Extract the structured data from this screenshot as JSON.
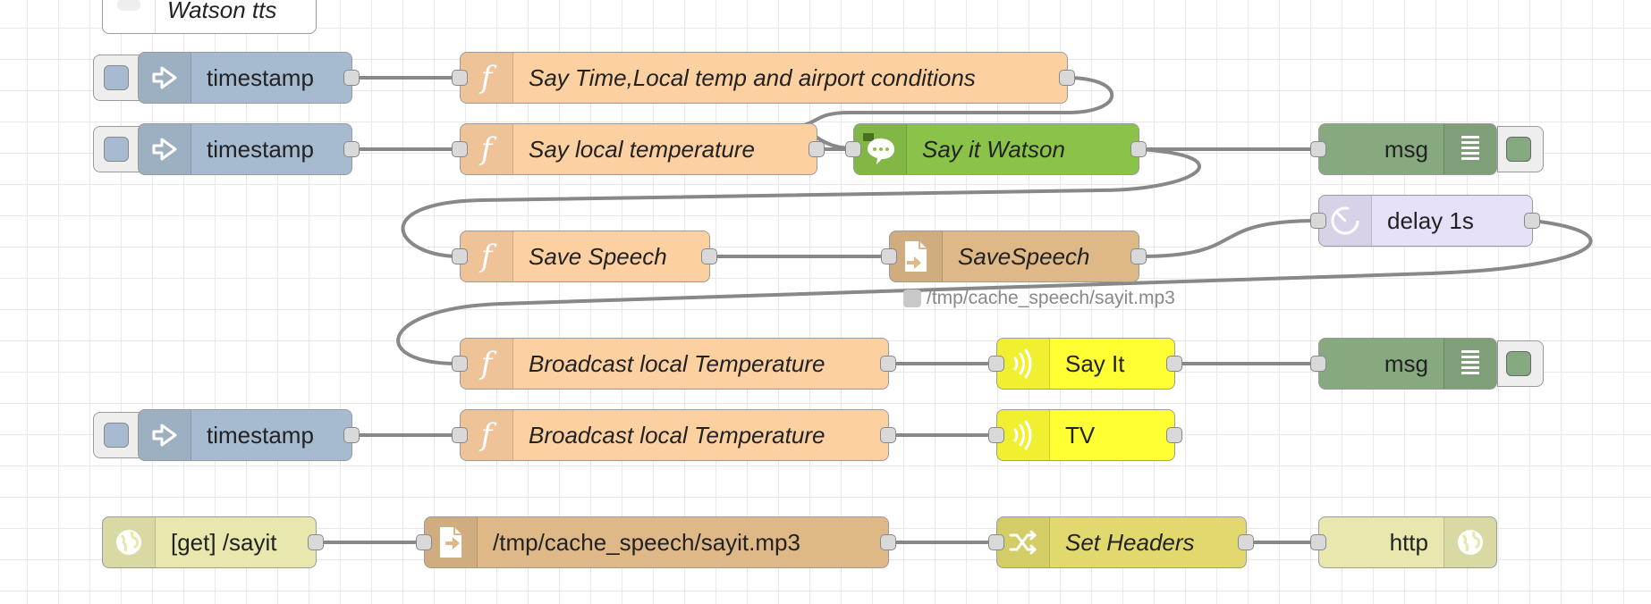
{
  "colors": {
    "inject": "#a6bbcf",
    "function": "#fdd0a2",
    "watson": "#8bc34a",
    "debug": "#87a980",
    "delay": "#e6e0f8",
    "file": "#deb887",
    "chromecast": "#ffff33",
    "http_in": "#e7e7ae",
    "change": "#e2d96e",
    "http_response": "#e7e7ae",
    "wire": "#888888"
  },
  "comment": {
    "label": "Watson tts"
  },
  "nodes": {
    "inject_1": {
      "label": "timestamp",
      "icon": "arrow-in-icon"
    },
    "inject_2": {
      "label": "timestamp",
      "icon": "arrow-in-icon"
    },
    "inject_3": {
      "label": "timestamp",
      "icon": "arrow-in-icon"
    },
    "func_airport": {
      "label": "Say Time,Local temp and airport conditions",
      "icon": "function-icon"
    },
    "func_local_temp": {
      "label": "Say local temperature",
      "icon": "function-icon"
    },
    "watson": {
      "label": "Say it Watson",
      "icon": "speech-bubble-icon"
    },
    "debug_1": {
      "label": "msg",
      "icon": "debug-list-icon"
    },
    "func_save": {
      "label": "Save Speech",
      "icon": "function-icon"
    },
    "file_save": {
      "label": "SaveSpeech",
      "icon": "file-icon",
      "status": "/tmp/cache_speech/sayit.mp3"
    },
    "delay": {
      "label": "delay 1s",
      "icon": "timer-icon"
    },
    "func_broadcast_1": {
      "label": "Broadcast local Temperature",
      "icon": "function-icon"
    },
    "say_it": {
      "label": "Say It",
      "icon": "cast-icon"
    },
    "debug_2": {
      "label": "msg",
      "icon": "debug-list-icon"
    },
    "func_broadcast_2": {
      "label": "Broadcast local Temperature",
      "icon": "function-icon"
    },
    "tv": {
      "label": "TV",
      "icon": "cast-icon"
    },
    "http_in": {
      "label": "[get] /sayit",
      "icon": "globe-icon"
    },
    "file_read": {
      "label": "/tmp/cache_speech/sayit.mp3",
      "icon": "file-icon"
    },
    "set_headers": {
      "label": "Set Headers",
      "icon": "shuffle-icon"
    },
    "http_out": {
      "label": "http",
      "icon": "globe-icon"
    }
  }
}
